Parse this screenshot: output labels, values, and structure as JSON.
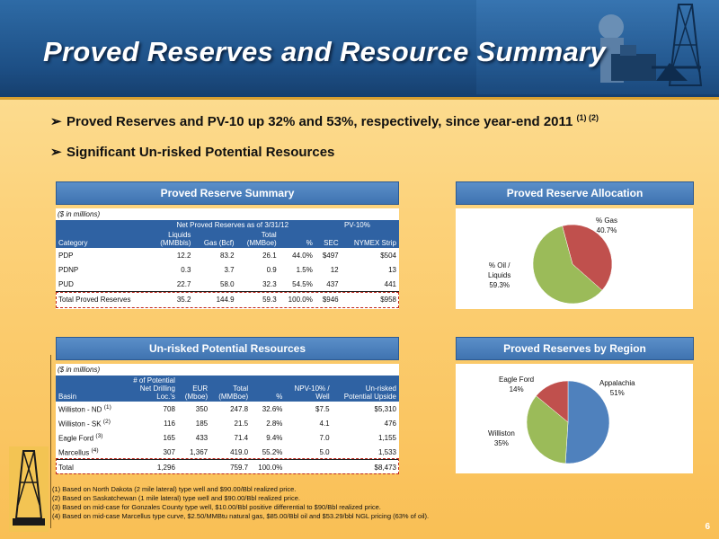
{
  "title": "Proved Reserves and Resource Summary",
  "bullets": [
    {
      "text": "Proved Reserves and PV-10 up 32% and 53%, respectively, since year-end 2011",
      "sup": "(1) (2)"
    },
    {
      "text": "Significant Un-risked Potential Resources",
      "sup": ""
    }
  ],
  "arrow": "➢",
  "proved_summary": {
    "heading": "Proved Reserve Summary",
    "units": "($ in millions)",
    "group_net": "Net Proved Reserves as of 3/31/12",
    "group_pv": "PV-10%",
    "cols": [
      "Category",
      "Liquids (MMBbls)",
      "Gas (Bcf)",
      "Total (MMBoe)",
      "%",
      "SEC",
      "NYMEX Strip"
    ],
    "col_liquids_1": "Liquids",
    "col_liquids_2": "(MMBbls)",
    "col_total_1": "Total",
    "col_total_2": "(MMBoe)",
    "rows": [
      [
        "PDP",
        "12.2",
        "83.2",
        "26.1",
        "44.0%",
        "$497",
        "$504"
      ],
      [
        "PDNP",
        "0.3",
        "3.7",
        "0.9",
        "1.5%",
        "12",
        "13"
      ],
      [
        "PUD",
        "22.7",
        "58.0",
        "32.3",
        "54.5%",
        "437",
        "441"
      ],
      [
        "Total Proved Reserves",
        "35.2",
        "144.9",
        "59.3",
        "100.0%",
        "$946",
        "$958"
      ]
    ]
  },
  "allocation": {
    "heading": "Proved Reserve Allocation",
    "label_gas_1": "% Gas",
    "label_gas_2": "40.7%",
    "label_oil_1": "% Oil /",
    "label_oil_2": "Liquids",
    "label_oil_3": "59.3%"
  },
  "unrisked": {
    "heading": "Un-risked Potential Resources",
    "units": "($ in millions)",
    "h_basin": "Basin",
    "h_pot_1": "# of Potential",
    "h_pot_2": "Net  Drilling",
    "h_pot_3": "Loc.'s",
    "h_eur_1": "EUR",
    "h_eur_2": "(Mboe)",
    "h_total_1": "Total",
    "h_total_2": "(MMBoe)",
    "h_pct": "%",
    "h_npv_1": "NPV-10% /",
    "h_npv_2": "Well",
    "h_up_1": "Un-risked",
    "h_up_2": "Potential Upside",
    "rows": [
      {
        "basin": "Williston - ND",
        "sup": "(1)",
        "vals": [
          "708",
          "350",
          "247.8",
          "32.6%",
          "$7.5",
          "$5,310"
        ]
      },
      {
        "basin": "Williston - SK",
        "sup": "(2)",
        "vals": [
          "116",
          "185",
          "21.5",
          "2.8%",
          "4.1",
          "476"
        ]
      },
      {
        "basin": "Eagle Ford",
        "sup": "(3)",
        "vals": [
          "165",
          "433",
          "71.4",
          "9.4%",
          "7.0",
          "1,155"
        ]
      },
      {
        "basin": "Marcellus",
        "sup": "(4)",
        "vals": [
          "307",
          "1,367",
          "419.0",
          "55.2%",
          "5.0",
          "1,533"
        ]
      }
    ],
    "total": {
      "basin": "Total",
      "vals": [
        "1,296",
        "",
        "759.7",
        "100.0%",
        "",
        "$8,473"
      ]
    }
  },
  "by_region": {
    "heading": "Proved Reserves by Region",
    "label_app_1": "Appalachia",
    "label_app_2": "51%",
    "label_ef_1": "Eagle Ford",
    "label_ef_2": "14%",
    "label_wil_1": "Williston",
    "label_wil_2": "35%"
  },
  "chart_data": [
    {
      "type": "pie",
      "title": "Proved Reserve Allocation",
      "labels": [
        "% Gas",
        "% Oil / Liquids"
      ],
      "values": [
        40.7,
        59.3
      ],
      "colors": [
        "#c0504d",
        "#9bbb59"
      ]
    },
    {
      "type": "pie",
      "title": "Proved Reserves by Region",
      "labels": [
        "Appalachia",
        "Williston",
        "Eagle Ford"
      ],
      "values": [
        51,
        35,
        14
      ],
      "colors": [
        "#4f81bd",
        "#9bbb59",
        "#c0504d"
      ]
    }
  ],
  "footnotes": [
    "(1) Based on North Dakota (2 mile lateral) type well and $90.00/Bbl realized price.",
    "(2) Based on Saskatchewan (1 mile lateral) type well and $90.00/Bbl realized price.",
    "(3) Based on mid-case for Gonzales County type well, $10.00/Bbl positive differential to $90/Bbl realized price.",
    "(4) Based on mid-case Marcellus type curve, $2.50/MMBtu natural gas, $85.00/Bbl oil and $53.29/bbl NGL pricing (63% of oil)."
  ],
  "page_number": "6"
}
